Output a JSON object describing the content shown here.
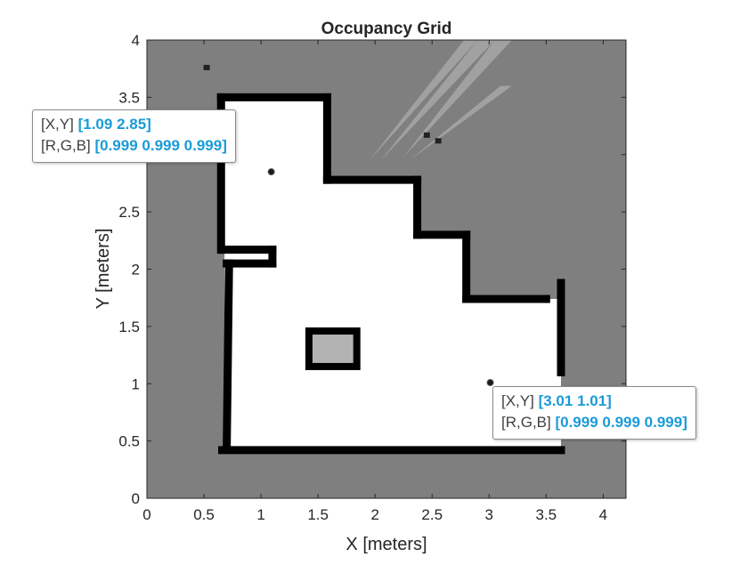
{
  "figure": {
    "title": "Occupancy Grid",
    "xlabel": "X [meters]",
    "ylabel": "Y [meters]"
  },
  "chart_data": {
    "type": "heatmap",
    "title": "Occupancy Grid",
    "xlabel": "X [meters]",
    "ylabel": "Y [meters]",
    "xlim": [
      0,
      4.2
    ],
    "ylim": [
      0,
      4
    ],
    "xticks": [
      "0",
      "0.5",
      "1",
      "1.5",
      "2",
      "2.5",
      "3",
      "3.5",
      "4"
    ],
    "yticks": [
      "0",
      "0.5",
      "1",
      "1.5",
      "2",
      "2.5",
      "3",
      "3.5",
      "4"
    ],
    "colormap": "gray",
    "unknown_color": "#7f7f7f",
    "free_color": "#ffffff",
    "occupied_color": "#000000",
    "grid": false,
    "free_region": [
      [
        0.68,
        0.42
      ],
      [
        3.63,
        0.42
      ],
      [
        3.63,
        1.74
      ],
      [
        2.8,
        1.74
      ],
      [
        2.8,
        2.3
      ],
      [
        2.37,
        2.3
      ],
      [
        2.37,
        2.78
      ],
      [
        1.58,
        2.78
      ],
      [
        1.58,
        3.5
      ],
      [
        0.65,
        3.5
      ],
      [
        0.65,
        2.15
      ],
      [
        0.68,
        2.15
      ]
    ],
    "occupied_walls": [
      [
        [
          0.65,
          3.5
        ],
        [
          1.58,
          3.5
        ]
      ],
      [
        [
          1.58,
          3.5
        ],
        [
          1.58,
          2.78
        ]
      ],
      [
        [
          1.58,
          2.78
        ],
        [
          2.37,
          2.78
        ]
      ],
      [
        [
          2.37,
          2.78
        ],
        [
          2.37,
          2.3
        ]
      ],
      [
        [
          2.37,
          2.3
        ],
        [
          2.8,
          2.3
        ]
      ],
      [
        [
          2.8,
          2.3
        ],
        [
          2.8,
          1.74
        ]
      ],
      [
        [
          2.8,
          1.74
        ],
        [
          3.5,
          1.74
        ]
      ],
      [
        [
          3.63,
          1.88
        ],
        [
          3.63,
          1.1
        ]
      ],
      [
        [
          3.63,
          0.42
        ],
        [
          0.66,
          0.42
        ]
      ],
      [
        [
          0.7,
          0.48
        ],
        [
          0.72,
          2.05
        ]
      ],
      [
        [
          0.66,
          2.17
        ],
        [
          1.1,
          2.17
        ]
      ],
      [
        [
          1.1,
          2.17
        ],
        [
          1.1,
          2.05
        ]
      ],
      [
        [
          1.1,
          2.05
        ],
        [
          0.7,
          2.05
        ]
      ],
      [
        [
          0.65,
          2.17
        ],
        [
          0.65,
          3.5
        ]
      ]
    ],
    "obstacle_box": {
      "x": [
        1.42,
        1.84
      ],
      "y": [
        1.15,
        1.46
      ]
    },
    "datatips": [
      {
        "xy_label": "[X,Y]",
        "xy_value": "[1.09 2.85]",
        "rgb_label": "[R,G,B]",
        "rgb_value": "[0.999 0.999 0.999]",
        "x": 1.09,
        "y": 2.85
      },
      {
        "xy_label": "[X,Y]",
        "xy_value": "[3.01 1.01]",
        "rgb_label": "[R,G,B]",
        "rgb_value": "[0.999 0.999 0.999]",
        "x": 3.01,
        "y": 1.01
      }
    ]
  }
}
